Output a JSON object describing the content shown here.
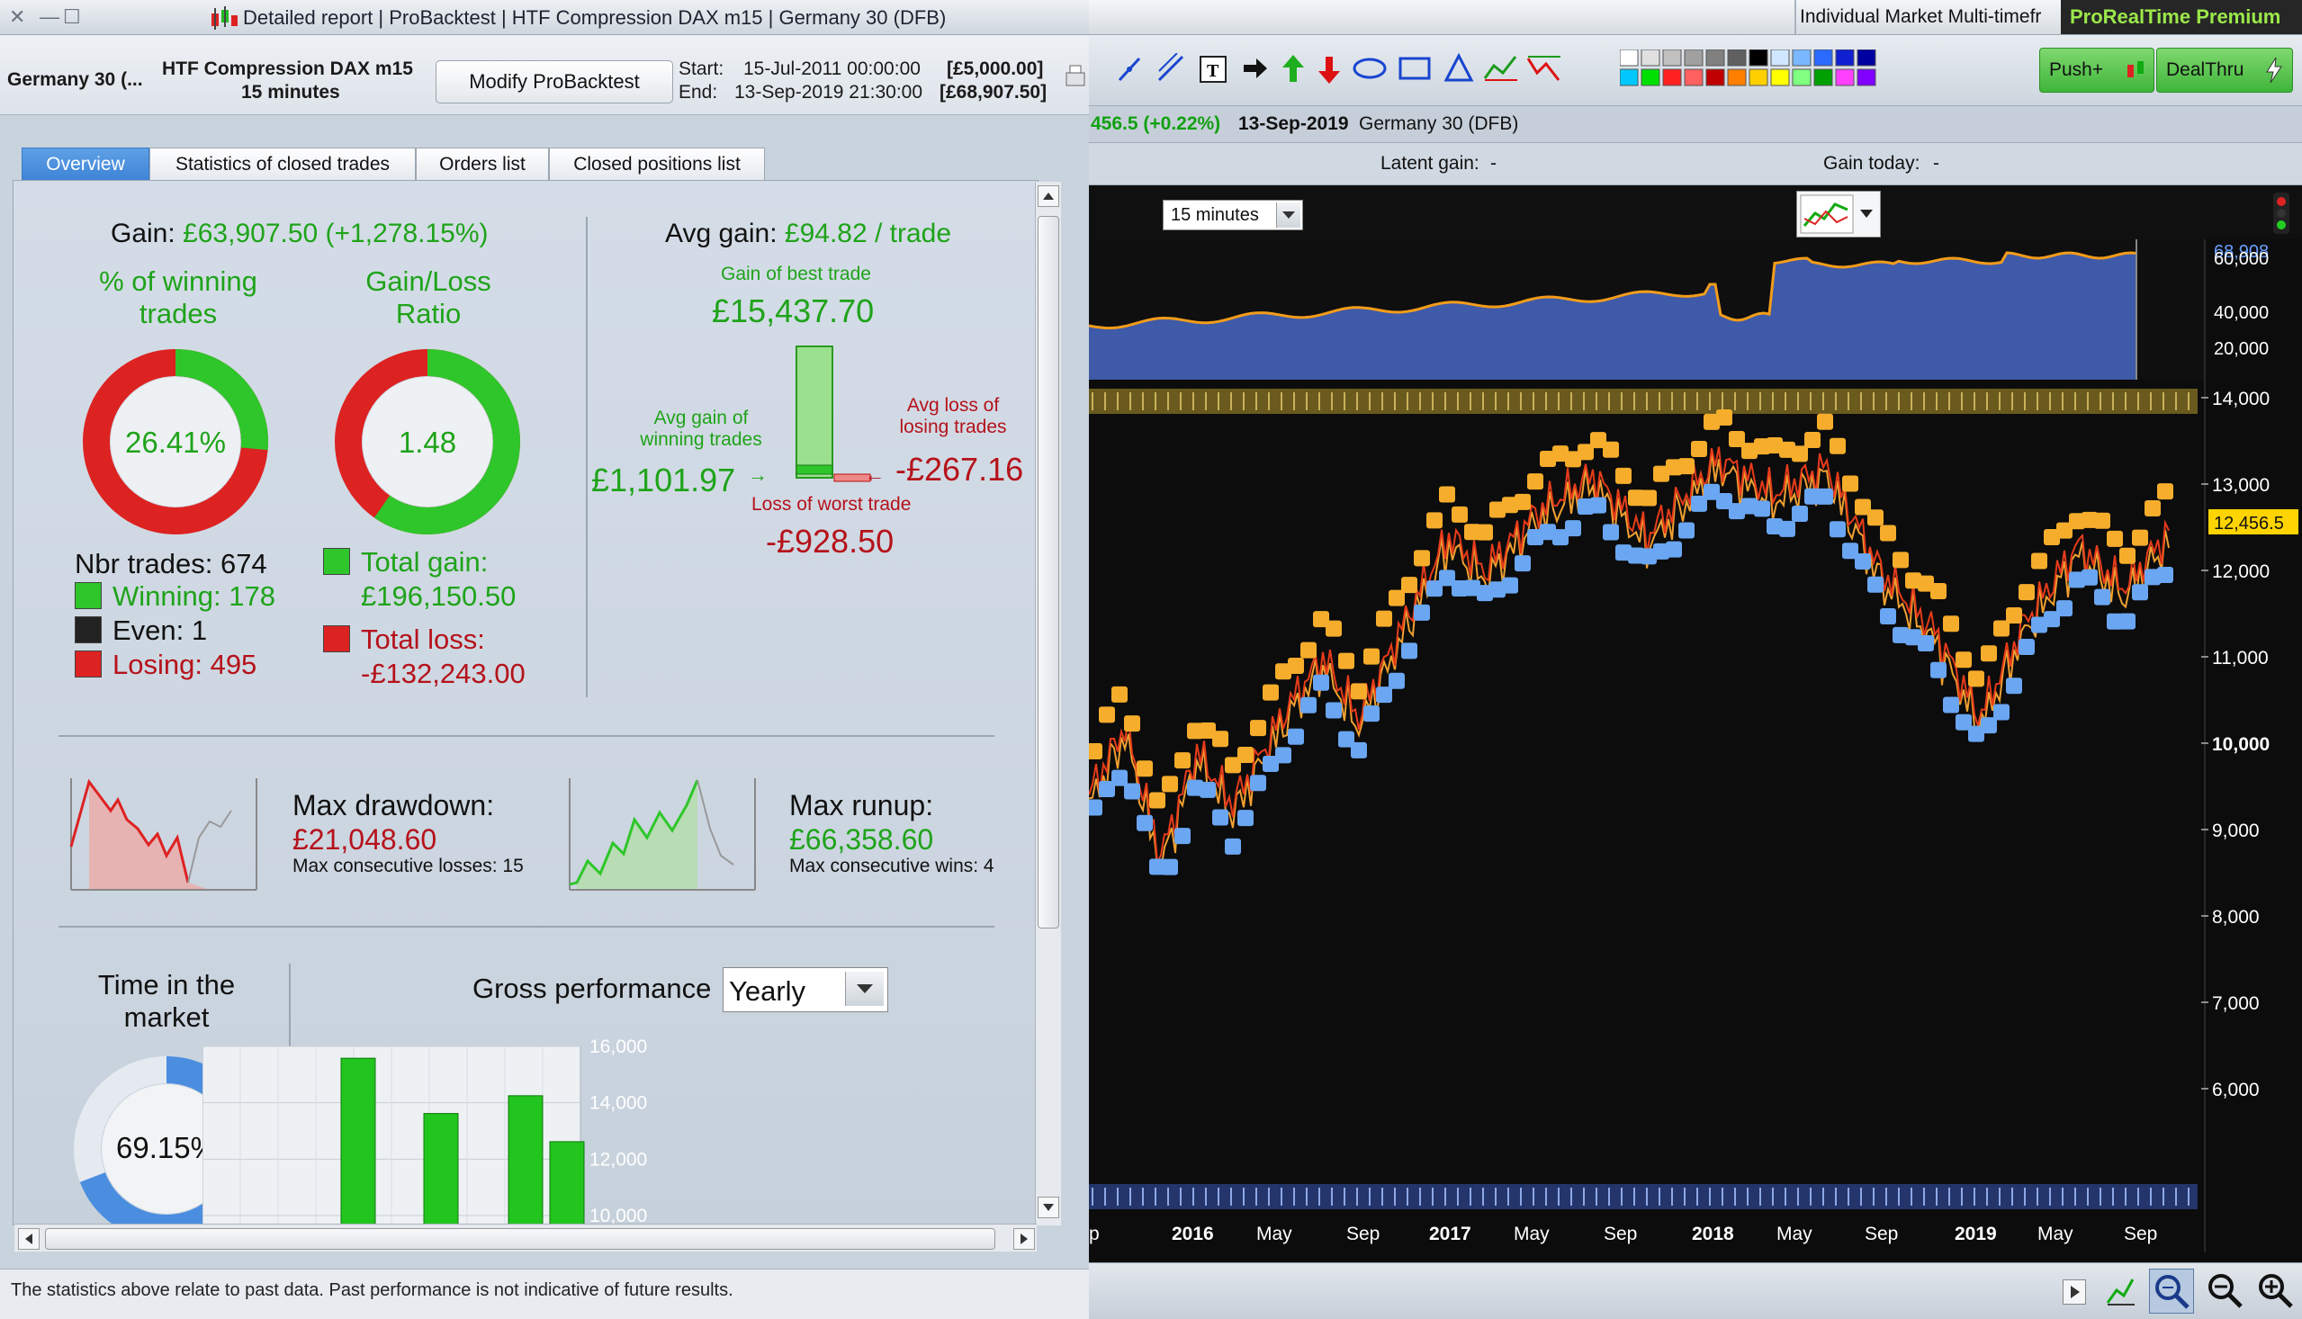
{
  "report_window": {
    "title": "Detailed report | ProBacktest | HTF Compression DAX m15 | Germany 30 (DFB)",
    "instrument": "Germany 30 (...",
    "system_name": "HTF Compression DAX m15",
    "timeframe": "15 minutes",
    "modify_button": "Modify ProBacktest",
    "start_label": "Start:",
    "start_date": "15-Jul-2011 00:00:00",
    "start_capital": "[£5,000.00]",
    "end_label": "End:",
    "end_date": "13-Sep-2019 21:30:00",
    "end_capital": "[£68,907.50]",
    "tabs": [
      "Overview",
      "Statistics of closed trades",
      "Orders list",
      "Closed positions list"
    ],
    "footer_note": "The statistics above relate to past data. Past performance is not indicative of future results."
  },
  "overview": {
    "gain_label": "Gain:",
    "gain_value": "£63,907.50 (+1,278.15%)",
    "winning_label_1": "% of winning",
    "winning_label_2": "trades",
    "winning_pct": "26.41%",
    "winning_fraction": 0.2641,
    "ratio_label_1": "Gain/Loss",
    "ratio_label_2": "Ratio",
    "ratio_value": "1.48",
    "ratio_fraction": 0.597,
    "nbr_trades": "Nbr trades: 674",
    "winning_count": "Winning: 178",
    "even_count": "Even: 1",
    "losing_count": "Losing: 495",
    "total_gain_label": "Total gain:",
    "total_gain_value": "£196,150.50",
    "total_loss_label": "Total loss:",
    "total_loss_value": "-£132,243.00",
    "avg_gain_label": "Avg gain:",
    "avg_gain_value": "£94.82 / trade",
    "best_trade_label": "Gain of best trade",
    "best_trade_value": "£15,437.70",
    "avg_win_label_1": "Avg gain of",
    "avg_win_label_2": "winning trades",
    "avg_win_value": "£1,101.97",
    "avg_loss_label_1": "Avg loss of",
    "avg_loss_label_2": "losing trades",
    "avg_loss_value": "-£267.16",
    "worst_trade_label": "Loss of worst trade",
    "worst_trade_value": "-£928.50",
    "max_drawdown_label": "Max drawdown:",
    "max_drawdown_value": "£21,048.60",
    "max_consec_losses": "Max consecutive losses: 15",
    "max_runup_label": "Max runup:",
    "max_runup_value": "£66,358.60",
    "max_consec_wins": "Max consecutive wins: 4",
    "time_market_label_1": "Time in the",
    "time_market_label_2": "market",
    "time_market_value": "69.15%",
    "time_market_fraction": 0.6915,
    "gross_perf_label": "Gross performance",
    "gross_perf_period": "Yearly"
  },
  "gross_performance_chart": {
    "type": "bar",
    "y_ticks": [
      "16,000",
      "14,000",
      "12,000",
      "10,000"
    ],
    "ylim": [
      10000,
      16000
    ],
    "values": [
      15580,
      13620,
      14250,
      12620
    ],
    "color": "#22c41e"
  },
  "chart_window": {
    "tab_title": "Individual Market Multi-timefr",
    "brand": "ProRealTime Premium",
    "push_button": "Push+",
    "dealthru_button": "DealThru",
    "quote_change": "456.5 (+0.22%)",
    "quote_date": "13-Sep-2019",
    "quote_instrument": "Germany 30 (DFB)",
    "latent_gain_label": "Latent gain:",
    "latent_gain_value": "-",
    "gain_today_label": "Gain today:",
    "gain_today_value": "-",
    "timeframe_select": "15 minutes",
    "equity_axis": [
      "68,908",
      "60,000",
      "40,000",
      "20,000"
    ],
    "price_axis": [
      "14,000",
      "13,000",
      "12,000",
      "11,000",
      "10,000",
      "9,000",
      "8,000",
      "7,000",
      "6,000"
    ],
    "last_price": "12,456.5",
    "x_axis": [
      "p",
      "2016",
      "May",
      "Sep",
      "2017",
      "May",
      "Sep",
      "2018",
      "May",
      "Sep",
      "2019",
      "May",
      "Sep"
    ],
    "palette": [
      "#ffffff",
      "#e0e0e0",
      "#c0c0c0",
      "#a0a0a0",
      "#808080",
      "#606060",
      "#000000",
      "#d0e8ff",
      "#7ab8ff",
      "#2a6aff",
      "#1020d0",
      "#0000a0",
      "#00c8ff",
      "#00e000",
      "#ff2020",
      "#ff6060",
      "#c00000",
      "#ff8000",
      "#ffd000",
      "#ffff00",
      "#80ff80",
      "#00a000",
      "#ff40ff",
      "#8000ff"
    ]
  }
}
